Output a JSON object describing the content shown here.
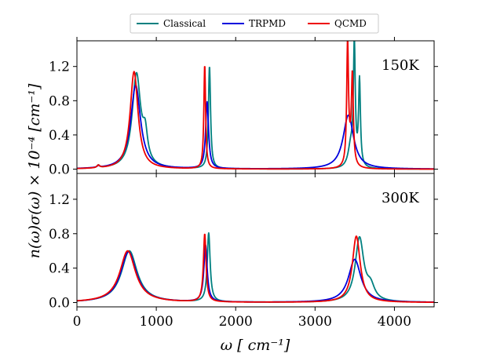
{
  "chart_data": {
    "type": "line",
    "xlabel": "ω [ cm⁻¹]",
    "ylabel": "n(ω)σ(ω) × 10⁻⁴ [cm⁻¹]",
    "xlim": [
      0,
      4500
    ],
    "ylim": [
      -0.05,
      1.5
    ],
    "x_ticks": [
      0,
      1000,
      2000,
      3000,
      4000
    ],
    "y_ticks": [
      0.0,
      0.4,
      0.8,
      1.2
    ],
    "x_tick_labels": [
      "0",
      "1000",
      "2000",
      "3000",
      "4000"
    ],
    "y_tick_labels": [
      "0.0",
      "0.4",
      "0.8",
      "1.2"
    ],
    "grid": false,
    "legend_placement": "top-center",
    "legend": [
      {
        "name": "Classical",
        "color": "#008080"
      },
      {
        "name": "TRPMD",
        "color": "#0000dd"
      },
      {
        "name": "QCMD",
        "color": "#ee0000"
      }
    ],
    "panels": [
      {
        "label": "150K",
        "series": [
          {
            "name": "Classical",
            "color": "#008080",
            "peaks": [
              [
                270,
                0.03,
                20
              ],
              [
                750,
                1.1,
                65
              ],
              [
                860,
                0.3,
                35
              ],
              [
                1670,
                1.2,
                16
              ],
              [
                3495,
                1.4,
                14
              ],
              [
                3560,
                1.0,
                14
              ],
              [
                3450,
                0.25,
                40
              ]
            ]
          },
          {
            "name": "TRPMD",
            "color": "#0000dd",
            "peaks": [
              [
                270,
                0.02,
                20
              ],
              [
                740,
                0.98,
                75
              ],
              [
                1640,
                0.78,
                22
              ],
              [
                3420,
                0.63,
                80
              ]
            ]
          },
          {
            "name": "QCMD",
            "color": "#ee0000",
            "peaks": [
              [
                270,
                0.03,
                20
              ],
              [
                720,
                1.14,
                60
              ],
              [
                1610,
                1.22,
                13
              ],
              [
                3410,
                1.4,
                13
              ],
              [
                3470,
                1.0,
                14
              ],
              [
                3440,
                0.15,
                40
              ]
            ]
          }
        ]
      },
      {
        "label": "300K",
        "series": [
          {
            "name": "Classical",
            "color": "#008080",
            "peaks": [
              [
                660,
                0.6,
                120
              ],
              [
                1660,
                0.8,
                22
              ],
              [
                3560,
                0.74,
                65
              ],
              [
                3700,
                0.15,
                60
              ]
            ]
          },
          {
            "name": "TRPMD",
            "color": "#0000dd",
            "peaks": [
              [
                650,
                0.59,
                120
              ],
              [
                1620,
                0.66,
                25
              ],
              [
                3500,
                0.5,
                95
              ]
            ]
          },
          {
            "name": "QCMD",
            "color": "#ee0000",
            "peaks": [
              [
                640,
                0.6,
                120
              ],
              [
                1610,
                0.79,
                20
              ],
              [
                3520,
                0.77,
                60
              ]
            ]
          }
        ]
      }
    ]
  }
}
